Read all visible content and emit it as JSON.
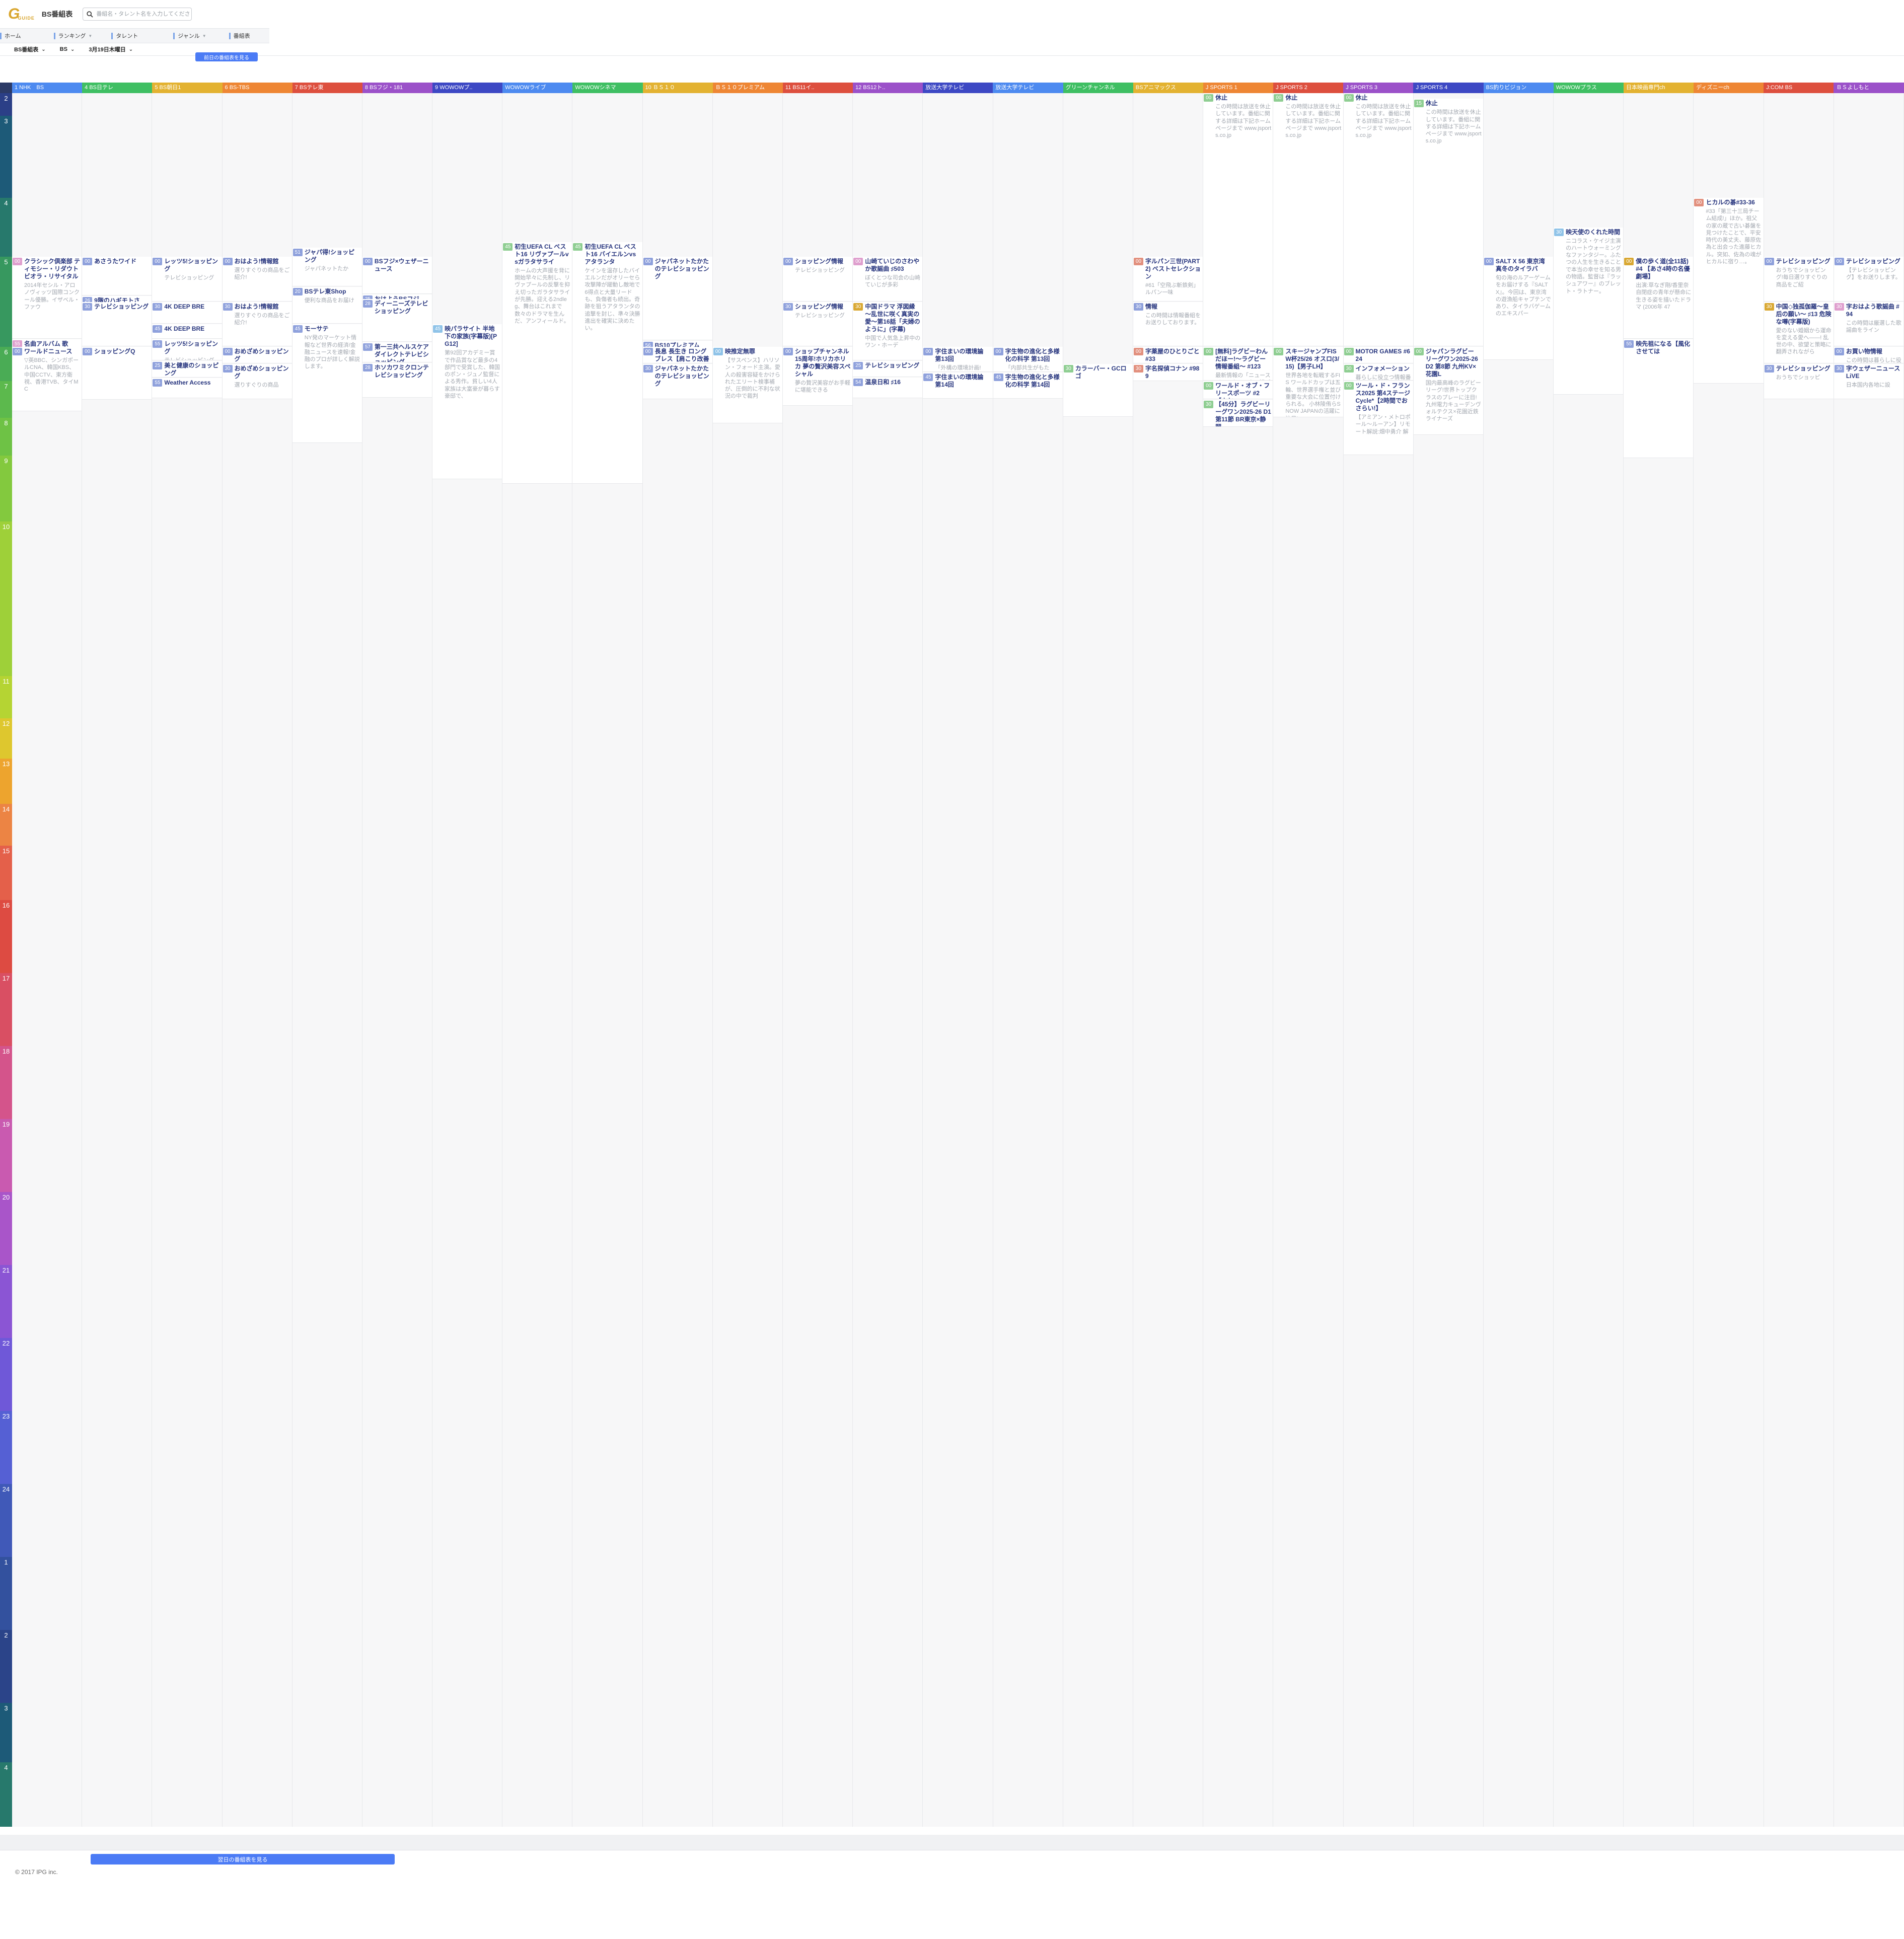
{
  "header": {
    "logo_g": "G",
    "logo_guide": "GUIDE",
    "title": "BS番組表",
    "search_placeholder": "番組名・タレント名を入力してください"
  },
  "nav": {
    "items": [
      {
        "label": "ホーム",
        "arrow": false
      },
      {
        "label": "ランキング",
        "arrow": true
      },
      {
        "label": "タレント",
        "arrow": false
      },
      {
        "label": "ジャンル",
        "arrow": true
      },
      {
        "label": "番組表",
        "arrow": false
      }
    ]
  },
  "filters": [
    {
      "value": "BS番組表"
    },
    {
      "value": "BS"
    },
    {
      "value": "3月19日木曜日"
    }
  ],
  "prev_day_button": "前日の番組表を見る",
  "next_day_button": "翌日の番組表を見る",
  "footer": "© 2017 IPG inc.",
  "accent_color": "#4b7bf5",
  "timeline": {
    "hours": [
      "2",
      "3",
      "4",
      "5",
      "6",
      "7",
      "8",
      "9",
      "10",
      "11",
      "12",
      "13",
      "14",
      "15",
      "16",
      "17",
      "18",
      "19",
      "20",
      "21",
      "22",
      "23",
      "24",
      "1",
      "2",
      "3",
      "4"
    ],
    "colors": [
      "#2b3f87",
      "#1d5a78",
      "#27796c",
      "#37985f",
      "#4aac55",
      "#5cb94d",
      "#6ec245",
      "#83c93e",
      "#9ed039",
      "#b5d433",
      "#dec72e",
      "#eda42e",
      "#ec8444",
      "#e4604a",
      "#dd4b42",
      "#d94f63",
      "#d4548b",
      "#c95ab0",
      "#a955c9",
      "#8b55d4",
      "#6f58d8",
      "#5560d4",
      "#4059b8",
      "#33519e",
      "#2b4489",
      "#1d5a78",
      "#27796c"
    ]
  },
  "channels": [
    {
      "name": "1 NHK　BS",
      "color": "#4d8af0",
      "programs": [
        {
          "t": "5:00",
          "c": "k",
          "title": "クラシック倶楽部 ティモシー・リダウト ビオラ・リサイタル",
          "desc": "2014年セシル・アロノヴィッツ国際コンクール優勝。イザベル・ファウ"
        },
        {
          "t": "5:55",
          "c": "k",
          "title": "名曲アルバム 歌",
          "desc": ""
        },
        {
          "t": "6:00",
          "c": "p",
          "title": "ワールドニュース",
          "desc": "▽英BBC、シンガポールCNA、韓国KBS、中国CCTV、東方衛視、香港TVB、タイMC",
          "dur": 110
        }
      ]
    },
    {
      "name": "4 BS日テレ",
      "color": "#3fbf63",
      "programs": [
        {
          "t": "5:00",
          "c": "p",
          "title": "あさうたワイド",
          "desc": ""
        },
        {
          "t": "5:26",
          "c": "p",
          "title": "9階のハギモトさ",
          "desc": ""
        },
        {
          "t": "5:30",
          "c": "p",
          "title": "テレビショッピング",
          "desc": ""
        },
        {
          "t": "6:00",
          "c": "p",
          "title": "ショッピングQ",
          "desc": "",
          "dur": 90
        }
      ]
    },
    {
      "name": "5 BS朝日1",
      "color": "#e3b231",
      "programs": [
        {
          "t": "5:00",
          "c": "p",
          "title": "レッツ5!ショッピング",
          "desc": "テレビショッピング"
        },
        {
          "t": "5:30",
          "c": "p",
          "title": "4K DEEP BRE",
          "desc": ""
        },
        {
          "t": "5:45",
          "c": "p",
          "title": "4K DEEP BRE",
          "desc": ""
        },
        {
          "t": "5:55",
          "c": "p",
          "title": "レッツ5!ショッピング",
          "desc": "テレビショッピング"
        },
        {
          "t": "6:25",
          "c": "p",
          "title": "美と健康のショッピング",
          "desc": "テレビショッピン"
        },
        {
          "t": "6:55",
          "c": "p",
          "title": "Weather Access",
          "desc": "",
          "dur": 35
        }
      ]
    },
    {
      "name": "6 BS-TBS",
      "color": "#ee8634",
      "programs": [
        {
          "t": "5:00",
          "c": "p",
          "title": "おはよう!情報館",
          "desc": "選りすぐりの商品をご紹介!"
        },
        {
          "t": "5:30",
          "c": "p",
          "title": "おはよう!情報館",
          "desc": "選りすぐりの商品をご紹介!"
        },
        {
          "t": "6:00",
          "c": "p",
          "title": "おめざめショッピング",
          "desc": "選りすぐりの商品"
        },
        {
          "t": "6:30",
          "c": "p",
          "title": "おめざめショッピング",
          "desc": "選りすぐりの商品",
          "dur": 60
        }
      ]
    },
    {
      "name": "7 BSテレ東",
      "color": "#dd4f3e",
      "programs": [
        {
          "t": "4:51",
          "c": "p",
          "title": "ジャパ得!ショッピング",
          "desc": "ジャパネットたか"
        },
        {
          "t": "5:20",
          "c": "p",
          "title": "BSテレ東Shop",
          "desc": "便利な商品をお届け"
        },
        {
          "t": "5:45",
          "c": "p",
          "title": "モーサテ",
          "desc": "NY発のマーケット情報など世界の経済/金融ニュースを速報!金融のプロが詳しく解説します。",
          "dur": 115
        }
      ]
    },
    {
      "name": "8 BSフジ・181",
      "color": "#9b51c9",
      "programs": [
        {
          "t": "5:00",
          "c": "p",
          "title": "BSフジ×ウェザーニュース",
          "desc": ""
        },
        {
          "t": "5:25",
          "c": "p",
          "title": "おはようBSフジ",
          "desc": ""
        },
        {
          "t": "5:28",
          "c": "p",
          "title": "ディーニーズテレビショッピング",
          "desc": ""
        },
        {
          "t": "5:57",
          "c": "p",
          "title": "第一三共ヘルスケアダイレクトテレビショッピング",
          "desc": ""
        },
        {
          "t": "6:28",
          "c": "p",
          "title": "ホソカワミクロンテレビショッピング",
          "desc": "",
          "dur": 60
        }
      ]
    },
    {
      "name": "9 WOWOWプ..",
      "color": "#3d48c4",
      "programs": [
        {
          "t": "5:45",
          "c": "b",
          "title": "映パラサイト 半地下の家族(字幕版)[PG12]",
          "desc": "第92回アカデミー賞で作品賞など最多の4部門で受賞した、韓国のポン・ジュノ監督による秀作。貧しい4人家族は大富豪が暮らす豪邸で、",
          "dur": 150
        }
      ]
    },
    {
      "name": "WOWOWライブ",
      "color": "#4d8af0",
      "programs": [
        {
          "t": "4:45",
          "c": "n",
          "title": "初生UEFA CL ベスト16 リヴァプールvsガラタサライ",
          "desc": "ホームの大声援を背に開始早々に先制し、リヴァプールの反撃を抑え切ったガラタサライが先勝。迎える2ndleg、舞台はこれまで数々のドラマを生んだ、アンフィールド。",
          "dur": 195
        }
      ]
    },
    {
      "name": "WOWOWシネマ",
      "color": "#3fbf63",
      "programs": [
        {
          "t": "4:45",
          "c": "n",
          "title": "初生UEFA CL ベスト16 バイエルンvsアタランタ",
          "desc": "ケインを温存したバイエルンだがオリーセら攻撃陣が躍動し敵地で6得点と大量リードも、負傷者も続出。奇跡を狙うアタランタの追撃を封じ、準々決勝進出を確実に決めたい。",
          "dur": 195
        }
      ]
    },
    {
      "name": "10 ＢＳ１０",
      "color": "#e3b231",
      "programs": [
        {
          "t": "5:00",
          "c": "p",
          "title": "ジャパネットたかたのテレビショッピング",
          "desc": ""
        },
        {
          "t": "5:56",
          "c": "p",
          "title": "BS10プレミアム",
          "desc": ""
        },
        {
          "t": "6:00",
          "c": "p",
          "title": "長息 長生き ロングブレス【肩こり改善の日】",
          "desc": ""
        },
        {
          "t": "6:30",
          "c": "p",
          "title": "ジャパネットたかたのテレビショッピング",
          "desc": "",
          "dur": 60
        }
      ]
    },
    {
      "name": "ＢＳ１０プレミアム",
      "color": "#ee8634",
      "programs": [
        {
          "t": "6:00",
          "c": "b",
          "title": "映推定無罪",
          "desc": "【サスペンス】ハリソン・フォード主演。愛人の殺害容疑をかけられたエリート検事補が、圧倒的に不利な状況の中で裁判",
          "dur": 130
        }
      ]
    },
    {
      "name": "11 BS11イ..",
      "color": "#dd4f3e",
      "programs": [
        {
          "t": "5:00",
          "c": "p",
          "title": "ショッピング情報",
          "desc": "テレビショッピング"
        },
        {
          "t": "5:30",
          "c": "p",
          "title": "ショッピング情報",
          "desc": "テレビショッピング"
        },
        {
          "t": "6:00",
          "c": "p",
          "title": "ショップチャンネル 15周年!ホリカホリカ 夢の贅沢美容スペシャル",
          "desc": "夢の贅沢美容がお手軽に堪能できる",
          "dur": 100
        }
      ]
    },
    {
      "name": "12 BS12ト..",
      "color": "#9b51c9",
      "programs": [
        {
          "t": "5:00",
          "c": "k",
          "title": "山崎ていじのさわやか歌謡曲 ♯503",
          "desc": "ぼくとつな司会の山崎ていじが多彩"
        },
        {
          "t": "5:30",
          "c": "g",
          "title": "中国ドラマ 浮図縁～乱世に咲く真実の愛～第16話「夫婦のように」(字幕)",
          "desc": "中国で人気急上昇中のワン・ホーデ"
        },
        {
          "t": "6:25",
          "c": "p",
          "title": "テレビショッピング",
          "desc": ""
        },
        {
          "t": "6:54",
          "c": "p",
          "title": "温泉日和 ♯16",
          "desc": "",
          "dur": 36
        }
      ]
    },
    {
      "name": "放送大学テレビ",
      "color": "#3d48c4",
      "programs": [
        {
          "t": "6:00",
          "c": "p",
          "title": "字住まいの環境論 第13回",
          "desc": "「外構の環境計画!"
        },
        {
          "t": "6:45",
          "c": "p",
          "title": "字住まいの環境論 第14回",
          "desc": "",
          "dur": 45
        }
      ]
    },
    {
      "name": "放送大学テレビ",
      "color": "#4d8af0",
      "programs": [
        {
          "t": "6:00",
          "c": "p",
          "title": "字生物の進化と多様化の科学 第13回",
          "desc": "「内部共生がもた"
        },
        {
          "t": "6:45",
          "c": "p",
          "title": "字生物の進化と多様化の科学 第14回",
          "desc": "",
          "dur": 45
        }
      ]
    },
    {
      "name": "グリーンチャンネル",
      "color": "#3fbf63",
      "programs": [
        {
          "t": "6:30",
          "c": "n",
          "title": "カラーバー・GCロゴ",
          "desc": "",
          "dur": 90
        }
      ]
    },
    {
      "name": "BSアニマックス",
      "color": "#e3b231",
      "programs": [
        {
          "t": "5:00",
          "c": "s",
          "title": "字ルパン三世(PART2) ベストセレクション",
          "desc": "#61「空飛ぶ斬鉄剣」 ルパン一味"
        },
        {
          "t": "5:30",
          "c": "p",
          "title": "情報",
          "desc": "この時間は情報番組をお送りしております。"
        },
        {
          "t": "6:00",
          "c": "s",
          "title": "字薬屋のひとりごと #33",
          "desc": "#33「先帝」 帝の"
        },
        {
          "t": "6:30",
          "c": "s",
          "title": "字名探偵コナン #989",
          "desc": "#989「言えない目",
          "dur": 30
        }
      ]
    },
    {
      "name": "J SPORTS 1",
      "color": "#ee8634",
      "programs": [
        {
          "t": "2:00",
          "c": "n",
          "title": "休止",
          "desc": "この時間は放送を休止しています。番組に関する詳細は下記ホームページまで www.jsports.co.jp"
        },
        {
          "t": "6:00",
          "c": "n",
          "title": "[無料]ラグビーわんだほー!～ラグビー情報番組～ #123",
          "desc": "最新情報の「ニュースジャッカル」や、好プレー珍プ"
        },
        {
          "t": "7:00",
          "c": "n",
          "title": "ワールド・オブ・フリースポーツ #2【カヤッ",
          "desc": ""
        },
        {
          "t": "7:30",
          "c": "n",
          "title": "【45分】ラグビーリーグワン2025-26 D1 第11節 BR東京×静岡",
          "desc": "<Ball in play ハ",
          "dur": 45
        }
      ]
    },
    {
      "name": "J SPORTS 2",
      "color": "#dd4f3e",
      "programs": [
        {
          "t": "2:00",
          "c": "n",
          "title": "休止",
          "desc": "この時間は放送を休止しています。番組に関する詳細は下記ホームページまで www.jsports.co.jp"
        },
        {
          "t": "6:00",
          "c": "n",
          "title": "スキージャンプFIS W杯25/26 オスロ(3/15)【男子LH】",
          "desc": "世界各地を転戦するFIS ワールドカップは五輪、世界選手権と並び重要な大会に位置付けられる。 小林陵侑らSNOW JAPANの活躍に注目!",
          "dur": 120
        }
      ]
    },
    {
      "name": "J SPORTS 3",
      "color": "#9b51c9",
      "programs": [
        {
          "t": "2:00",
          "c": "n",
          "title": "休止",
          "desc": "この時間は放送を休止しています。番組に関する詳細は下記ホームページまで www.jsports.co.jp"
        },
        {
          "t": "6:00",
          "c": "n",
          "title": "MOTOR GAMES #624",
          "desc": "車&バイクによる"
        },
        {
          "t": "6:30",
          "c": "n",
          "title": "インフォメーション",
          "desc": "暮らしに役立つ情報番組"
        },
        {
          "t": "7:00",
          "c": "n",
          "title": "ツール・ド・フランス2025 第4ステージ Cycle*【2時間でおさらい!】",
          "desc": "【アミアン・メトロポール～ルーアン】リモート解説:畑中勇介 解",
          "dur": 120
        }
      ]
    },
    {
      "name": "J SPORTS 4",
      "color": "#3d48c4",
      "programs": [
        {
          "t": "2:15",
          "c": "n",
          "title": "休止",
          "desc": "この時間は放送を休止しています。番組に関する詳細は下記ホームページまで www.jsports.co.jp"
        },
        {
          "t": "6:00",
          "c": "n",
          "title": "ジャパンラグビー リーグワン2025-26 D2 第8節 九州KV×花園L",
          "desc": "国内最高峰のラグビーリーグ!世界トップクラスのプレーに注目!九州電力キューデンヴォルテクス×花園近鉄ライナーズ",
          "dur": 150
        }
      ]
    },
    {
      "name": "BS釣りビジョン",
      "color": "#4d8af0",
      "programs": [
        {
          "t": "5:00",
          "c": "p",
          "title": "SALT X 56 東京湾 真冬のタイラバ",
          "desc": "旬の海のルアーゲームをお届けする『SALT X』。今回は、東京湾の遊漁船キャプテンであり、タイラバゲームのエキスパー",
          "dur": 100
        }
      ]
    },
    {
      "name": "WOWOWプラス",
      "color": "#3fbf63",
      "programs": [
        {
          "t": "4:30",
          "c": "b",
          "title": "映天使のくれた時間",
          "desc": "ニコラス・ケイジ主演のハートウォーミングなファンタジー。ふたつの人生を生きることで本当の幸せを知る男の物語。監督は『ラッシュアワー』のブレット・ラトナー。",
          "dur": 135
        }
      ]
    },
    {
      "name": "日本映画専門ch",
      "color": "#e3b231",
      "programs": [
        {
          "t": "5:00",
          "c": "g",
          "title": "僕の歩く道(全11話)#4 【あさ4時の名優劇場】",
          "desc": "出演:草なぎ剛/香里奈 自閉症の青年が懸命に生きる姿を描いたドラマ (2006年 47"
        },
        {
          "t": "5:55",
          "c": "p",
          "title": "映先祖になる【風化させては",
          "desc": "",
          "dur": 115
        }
      ]
    },
    {
      "name": "ディズニーch",
      "color": "#ee8634",
      "programs": [
        {
          "t": "4:00",
          "c": "s",
          "title": "ヒカルの碁#33-36",
          "desc": "#33「第三十三局チーム結成!」ほか。祖父の家の蔵で古い碁盤を見つけたことで、平安時代の美丈夫、藤原佐為と出会った進藤ヒカル。突如、佐為の魂がヒカルに宿り…。",
          "dur": 150
        }
      ]
    },
    {
      "name": "J:COM BS",
      "color": "#dd4f3e",
      "programs": [
        {
          "t": "5:00",
          "c": "p",
          "title": "テレビショッピング",
          "desc": "おうちでショッピング!毎日選りすぐりの商品をご紹"
        },
        {
          "t": "5:30",
          "c": "g",
          "title": "中国◇独孤伽羅～皇后の願い～ ♯13 危険な噂(字幕版)",
          "desc": "愛のない婚姻から運命を変える愛へ——! 乱世の中、欲望と策略に翻弄されながら"
        },
        {
          "t": "6:30",
          "c": "p",
          "title": "テレビショッピング",
          "desc": "おうちでショッピ",
          "dur": 60
        }
      ]
    },
    {
      "name": "ＢＳよしもと",
      "color": "#9b51c9",
      "programs": [
        {
          "t": "5:00",
          "c": "p",
          "title": "テレビショッピング",
          "desc": "【テレビショッピング】をお送りします。"
        },
        {
          "t": "5:30",
          "c": "k",
          "title": "字おはよう歌謡曲 #94",
          "desc": "この時間は厳選した歌謡曲をライン"
        },
        {
          "t": "6:00",
          "c": "p",
          "title": "お買い物情報",
          "desc": "この時間は暮らしに役立つお買い物"
        },
        {
          "t": "6:30",
          "c": "p",
          "title": "字ウェザーニュースLiVE",
          "desc": "日本国内各地に設",
          "dur": 60
        }
      ]
    }
  ]
}
